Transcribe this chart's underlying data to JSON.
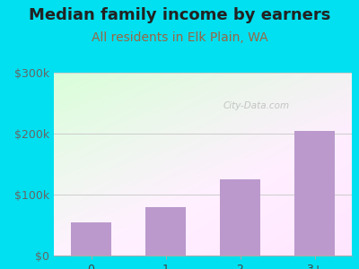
{
  "title": "Median family income by earners",
  "subtitle": "All residents in Elk Plain, WA",
  "categories": [
    "0",
    "1",
    "2",
    "3+"
  ],
  "values": [
    55000,
    80000,
    125000,
    205000
  ],
  "bar_color": "#bb99cc",
  "background_color": "#00e0f0",
  "title_color": "#222222",
  "subtitle_color": "#996644",
  "ylabel_color": "#666666",
  "xlabel_color": "#444444",
  "ylim": [
    0,
    300000
  ],
  "yticks": [
    0,
    100000,
    200000,
    300000
  ],
  "ytick_labels": [
    "$0",
    "$100k",
    "$200k",
    "$300k"
  ],
  "watermark": "City-Data.com",
  "title_fontsize": 13,
  "subtitle_fontsize": 10,
  "tick_fontsize": 9
}
